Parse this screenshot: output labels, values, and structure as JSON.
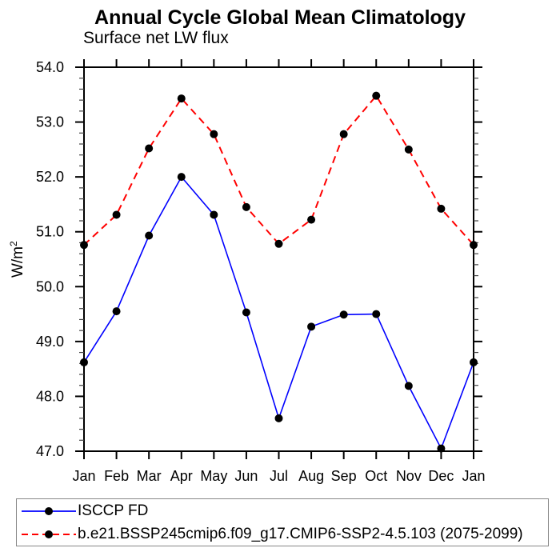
{
  "title": "Annual Cycle Global Mean Climatology",
  "subtitle": "Surface net LW flux",
  "ylabel": {
    "base": "W/m",
    "exp": "2"
  },
  "colors": {
    "series1": "#0000ff",
    "series2": "#ff0000",
    "marker": "#000000",
    "axis": "#000000",
    "legend_border": "#888888"
  },
  "chart_data": {
    "type": "line",
    "categories": [
      "Jan",
      "Feb",
      "Mar",
      "Apr",
      "May",
      "Jun",
      "Jul",
      "Aug",
      "Sep",
      "Oct",
      "Nov",
      "Dec",
      "Jan"
    ],
    "series": [
      {
        "name": "ISCCP FD",
        "style": "solid",
        "color": "#0000ff",
        "values": [
          48.62,
          49.55,
          50.93,
          52.0,
          51.31,
          49.53,
          47.6,
          49.27,
          49.49,
          49.5,
          48.19,
          47.05,
          48.62
        ]
      },
      {
        "name": "b.e21.BSSP245cmip6.f09_g17.CMIP6-SSP2-4.5.103 (2075-2099)",
        "style": "dashed",
        "color": "#ff0000",
        "values": [
          50.76,
          51.31,
          52.52,
          53.43,
          52.78,
          51.45,
          50.78,
          51.22,
          52.78,
          53.48,
          52.5,
          51.42,
          50.76
        ]
      }
    ],
    "title": "Annual Cycle Global Mean Climatology",
    "subtitle": "Surface net LW flux",
    "xlabel": "",
    "ylabel": "W/m2",
    "ylim": [
      47.0,
      54.0
    ],
    "y_major_step": 1.0,
    "y_minor_step": 0.2,
    "y_tick_labels": [
      "47.0",
      "48.0",
      "49.0",
      "50.0",
      "51.0",
      "52.0",
      "53.0",
      "54.0"
    ],
    "grid": "off",
    "marker": "filled-circle",
    "legend_position": "bottom-box"
  },
  "legend": {
    "entries": [
      {
        "label": "ISCCP FD"
      },
      {
        "label": "b.e21.BSSP245cmip6.f09_g17.CMIP6-SSP2-4.5.103 (2075-2099)"
      }
    ]
  }
}
